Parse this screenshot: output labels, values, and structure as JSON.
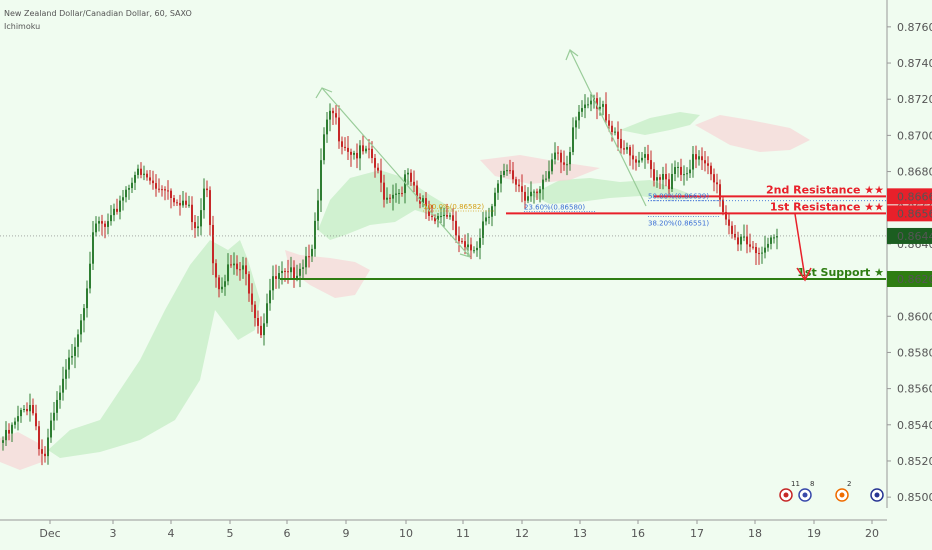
{
  "header": {
    "title": "New Zealand Dollar/Canadian Dollar, 60, SAXO",
    "indicator": "Ichimoku"
  },
  "colors": {
    "background": "#f0fcf0",
    "up": "#2e7d32",
    "down": "#c62828",
    "resistance": "#e8202a",
    "support": "#2e7d12",
    "cloud_bull": "#c8eec8",
    "cloud_bear": "#f6d6d6",
    "current_label": "#1b5e20",
    "swing": "#99cc99",
    "fib_blue": "#3b6fd6"
  },
  "chart_data": {
    "type": "candlestick",
    "symbol": "New Zealand Dollar/Canadian Dollar",
    "timeframe": "60",
    "source": "SAXO",
    "ylim": [
      0.8494,
      0.8766
    ],
    "y_ticks": [
      "0.85000",
      "0.85200",
      "0.85400",
      "0.85600",
      "0.85800",
      "0.86000",
      "0.86200",
      "0.86400",
      "0.86600",
      "0.86800",
      "0.87000",
      "0.87200",
      "0.87400",
      "0.87600"
    ],
    "x_ticks": [
      "Dec",
      "3",
      "4",
      "5",
      "6",
      "9",
      "10",
      "11",
      "12",
      "13",
      "16",
      "17",
      "18",
      "19",
      "20"
    ],
    "price_path": [
      [
        0,
        0.853
      ],
      [
        8,
        0.8534
      ],
      [
        16,
        0.8541
      ],
      [
        24,
        0.8548
      ],
      [
        30,
        0.8553
      ],
      [
        36,
        0.854
      ],
      [
        40,
        0.8527
      ],
      [
        44,
        0.8521
      ],
      [
        50,
        0.8536
      ],
      [
        56,
        0.8549
      ],
      [
        62,
        0.856
      ],
      [
        68,
        0.8572
      ],
      [
        74,
        0.8585
      ],
      [
        80,
        0.8597
      ],
      [
        86,
        0.8615
      ],
      [
        92,
        0.864
      ],
      [
        98,
        0.8652
      ],
      [
        104,
        0.8648
      ],
      [
        112,
        0.8652
      ],
      [
        120,
        0.8665
      ],
      [
        128,
        0.8672
      ],
      [
        134,
        0.868
      ],
      [
        140,
        0.8677
      ],
      [
        148,
        0.8676
      ],
      [
        156,
        0.867
      ],
      [
        164,
        0.8673
      ],
      [
        172,
        0.8667
      ],
      [
        180,
        0.8665
      ],
      [
        188,
        0.866
      ],
      [
        194,
        0.8648
      ],
      [
        200,
        0.865
      ],
      [
        204,
        0.8674
      ],
      [
        208,
        0.8672
      ],
      [
        212,
        0.8635
      ],
      [
        218,
        0.8618
      ],
      [
        224,
        0.8622
      ],
      [
        230,
        0.8628
      ],
      [
        236,
        0.8625
      ],
      [
        242,
        0.8626
      ],
      [
        248,
        0.8619
      ],
      [
        254,
        0.8605
      ],
      [
        262,
        0.859
      ],
      [
        266,
        0.8608
      ],
      [
        272,
        0.8618
      ],
      [
        280,
        0.8622
      ],
      [
        288,
        0.8621
      ],
      [
        296,
        0.8626
      ],
      [
        304,
        0.8631
      ],
      [
        312,
        0.8641
      ],
      [
        318,
        0.866
      ],
      [
        322,
        0.8693
      ],
      [
        328,
        0.8708
      ],
      [
        334,
        0.8712
      ],
      [
        338,
        0.8702
      ],
      [
        344,
        0.8696
      ],
      [
        350,
        0.8692
      ],
      [
        356,
        0.869
      ],
      [
        364,
        0.869
      ],
      [
        372,
        0.8687
      ],
      [
        380,
        0.8674
      ],
      [
        386,
        0.8665
      ],
      [
        392,
        0.867
      ],
      [
        398,
        0.8668
      ],
      [
        406,
        0.8677
      ],
      [
        412,
        0.8673
      ],
      [
        418,
        0.866
      ],
      [
        424,
        0.8664
      ],
      [
        430,
        0.8655
      ],
      [
        436,
        0.8657
      ],
      [
        442,
        0.8656
      ],
      [
        448,
        0.8657
      ],
      [
        454,
        0.8647
      ],
      [
        460,
        0.864
      ],
      [
        466,
        0.8635
      ],
      [
        472,
        0.8637
      ],
      [
        478,
        0.8642
      ],
      [
        484,
        0.8655
      ],
      [
        490,
        0.866
      ],
      [
        496,
        0.8669
      ],
      [
        502,
        0.8676
      ],
      [
        508,
        0.8679
      ],
      [
        514,
        0.8675
      ],
      [
        520,
        0.8672
      ],
      [
        526,
        0.8665
      ],
      [
        532,
        0.8674
      ],
      [
        538,
        0.8667
      ],
      [
        544,
        0.8672
      ],
      [
        550,
        0.8678
      ],
      [
        556,
        0.8693
      ],
      [
        562,
        0.8684
      ],
      [
        568,
        0.8687
      ],
      [
        574,
        0.871
      ],
      [
        580,
        0.8716
      ],
      [
        586,
        0.8712
      ],
      [
        592,
        0.8719
      ],
      [
        598,
        0.8713
      ],
      [
        604,
        0.8715
      ],
      [
        610,
        0.8706
      ],
      [
        616,
        0.8702
      ],
      [
        622,
        0.8695
      ],
      [
        628,
        0.8688
      ],
      [
        634,
        0.8685
      ],
      [
        640,
        0.8682
      ],
      [
        646,
        0.8688
      ],
      [
        652,
        0.868
      ],
      [
        658,
        0.8677
      ],
      [
        664,
        0.8681
      ],
      [
        670,
        0.8672
      ],
      [
        676,
        0.8682
      ],
      [
        682,
        0.8677
      ],
      [
        688,
        0.8675
      ],
      [
        694,
        0.8688
      ],
      [
        700,
        0.869
      ],
      [
        706,
        0.8687
      ],
      [
        712,
        0.8681
      ],
      [
        718,
        0.8668
      ],
      [
        724,
        0.8652
      ],
      [
        730,
        0.8647
      ],
      [
        736,
        0.8641
      ],
      [
        742,
        0.8646
      ],
      [
        748,
        0.8641
      ],
      [
        754,
        0.8639
      ],
      [
        760,
        0.8636
      ],
      [
        766,
        0.8633
      ],
      [
        772,
        0.8641
      ],
      [
        778,
        0.8644
      ]
    ],
    "levels": [
      {
        "name": "2nd Resistance",
        "value": 0.86663,
        "label": "2nd Resistance ★★",
        "price_label": "0.86663"
      },
      {
        "name": "1st Resistance",
        "value": 0.86569,
        "label": "1st Resistance ★★",
        "price_label": "0.86569"
      },
      {
        "name": "1st Support",
        "value": 0.86206,
        "label": "1st Support ★",
        "price_label": "0.86206"
      }
    ],
    "current_price": {
      "value": 0.86444,
      "price_label": "0.86444"
    },
    "fib_labels": [
      {
        "text": "100.0%(0.86582)",
        "value": 0.86582
      },
      {
        "text": "23.60%(0.86580)",
        "value": 0.8658
      },
      {
        "text": "50.00%(0.86639)",
        "value": 0.86639
      },
      {
        "text": "38.20%(0.86551)",
        "value": 0.86551
      }
    ],
    "event_badges": [
      "11",
      "8",
      "2",
      ""
    ]
  }
}
